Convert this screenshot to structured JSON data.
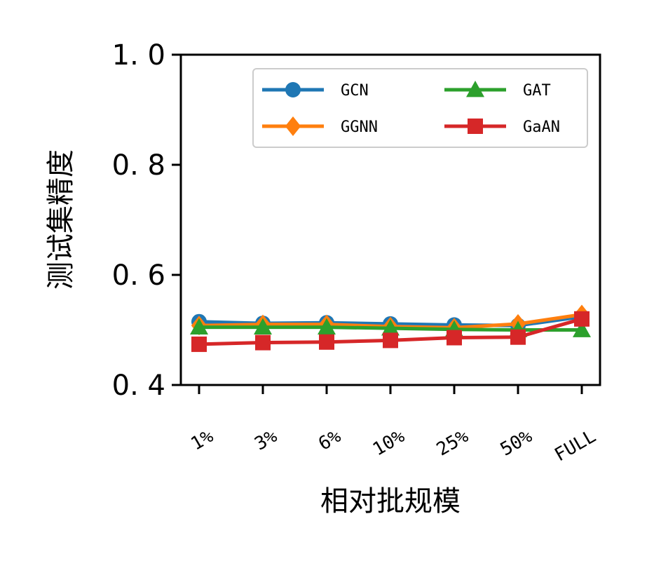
{
  "chart_data": {
    "type": "line",
    "title": "",
    "xlabel": "相对批规模",
    "ylabel": "测试集精度",
    "categories": [
      "1%",
      "3%",
      "6%",
      "10%",
      "25%",
      "50%",
      "FULL"
    ],
    "ylim": [
      0.4,
      1.0
    ],
    "yticks": [
      "0.4",
      "0.6",
      "0.8",
      "1.0"
    ],
    "grid": false,
    "legend_position": "top-right",
    "legend_columns": 2,
    "series": [
      {
        "name": "GCN",
        "color": "#1f77b4",
        "marker": "circle",
        "values": [
          0.515,
          0.512,
          0.513,
          0.511,
          0.509,
          0.508,
          0.524
        ]
      },
      {
        "name": "GGNN",
        "color": "#ff7f0e",
        "marker": "diamond",
        "values": [
          0.508,
          0.51,
          0.51,
          0.506,
          0.504,
          0.511,
          0.528
        ]
      },
      {
        "name": "GAT",
        "color": "#2ca02c",
        "marker": "triangle",
        "values": [
          0.505,
          0.505,
          0.505,
          0.503,
          0.501,
          0.5,
          0.5
        ]
      },
      {
        "name": "GaAN",
        "color": "#d62728",
        "marker": "square",
        "values": [
          0.474,
          0.477,
          0.478,
          0.481,
          0.486,
          0.487,
          0.52
        ]
      }
    ]
  }
}
